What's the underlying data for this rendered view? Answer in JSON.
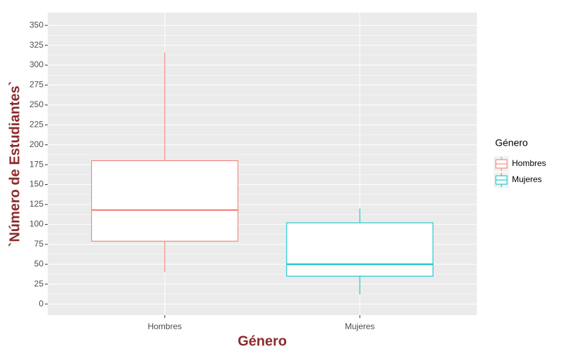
{
  "chart_data": {
    "type": "box",
    "x_label": "Género",
    "y_label": "`Número de Estudiantes`",
    "legend_title": "Género",
    "legend": "right",
    "grid": true,
    "categories": [
      "Hombres",
      "Mujeres"
    ],
    "series": [
      {
        "name": "Hombres",
        "color": "#F8766D",
        "min": 40,
        "q1": 79,
        "median": 118,
        "q3": 180,
        "max": 316
      },
      {
        "name": "Mujeres",
        "color": "#00BFC4",
        "min": 12,
        "q1": 35,
        "median": 50,
        "q3": 102,
        "max": 120
      }
    ],
    "ylim": [
      -14,
      366
    ],
    "yticks": [
      0,
      25,
      50,
      75,
      100,
      125,
      150,
      175,
      200,
      225,
      250,
      275,
      300,
      325,
      350
    ]
  }
}
